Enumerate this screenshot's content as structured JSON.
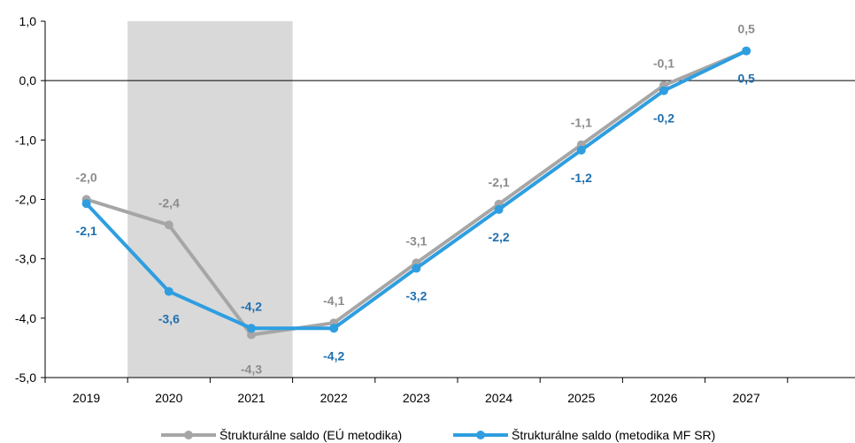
{
  "chart_data": {
    "type": "line",
    "categories": [
      "2019",
      "2020",
      "2021",
      "2022",
      "2023",
      "2024",
      "2025",
      "2026",
      "2027"
    ],
    "yticks": [
      "1,0",
      "0,0",
      "-1,0",
      "-2,0",
      "-3,0",
      "-4,0",
      "-5,0"
    ],
    "ylim": [
      -5,
      1
    ],
    "series": [
      {
        "name": "Štrukturálne saldo (EÚ metodika)",
        "values": [
          -2.0,
          -2.43,
          -4.28,
          -4.08,
          -3.07,
          -2.08,
          -1.08,
          -0.08,
          0.5
        ],
        "labels": [
          "-2,0",
          "-2,4",
          "-4,3",
          "-4,1",
          "-3,1",
          "-2,1",
          "-1,1",
          "-0,1",
          "0,5"
        ],
        "color": "#a6a6a6"
      },
      {
        "name": "Štrukturálne saldo (metodika MF SR)",
        "values": [
          -2.07,
          -3.55,
          -4.17,
          -4.17,
          -3.16,
          -2.17,
          -1.17,
          -0.17,
          0.5
        ],
        "labels": [
          "-2,1",
          "-3,6",
          "-4,2",
          "-4,2",
          "-3,2",
          "-2,2",
          "-1,2",
          "-0,2",
          "0,5"
        ],
        "color": "#2e9ee0",
        "label_color": "#1f6fb0"
      }
    ],
    "shaded_range": [
      "2020",
      "2021"
    ],
    "shaded_color": "#d9d9d9",
    "grid": false,
    "legend_position": "bottom"
  }
}
